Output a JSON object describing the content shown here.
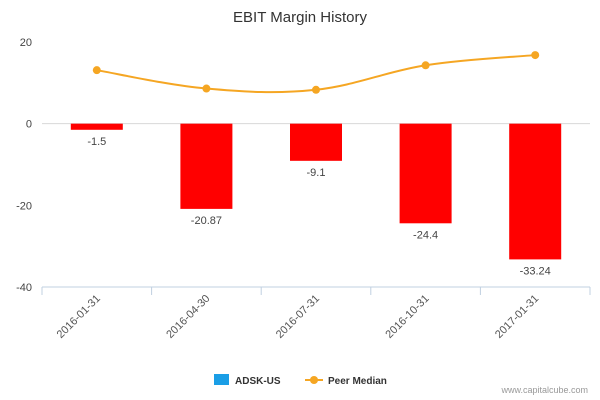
{
  "chart_data": {
    "type": "bar",
    "title": "EBIT Margin History",
    "categories": [
      "2016-01-31",
      "2016-04-30",
      "2016-07-31",
      "2016-10-31",
      "2017-01-31"
    ],
    "ylim": [
      -40,
      20
    ],
    "yticks": [
      -40,
      -20,
      0,
      20
    ],
    "series": [
      {
        "name": "ADSK-US",
        "kind": "bar",
        "values": [
          -1.5,
          -20.87,
          -9.1,
          -24.4,
          -33.24
        ],
        "labels": [
          "-1.5",
          "-20.87",
          "-9.1",
          "-24.4",
          "-33.24"
        ],
        "color": "#ff0000",
        "legend_color": "#1a9ee6"
      },
      {
        "name": "Peer Median",
        "kind": "line",
        "values": [
          13.1,
          8.6,
          8.3,
          14.3,
          16.8
        ],
        "color": "#f5a623"
      }
    ],
    "grid": false,
    "legend": "bottom-center",
    "credit": "www.capitalcube.com"
  }
}
